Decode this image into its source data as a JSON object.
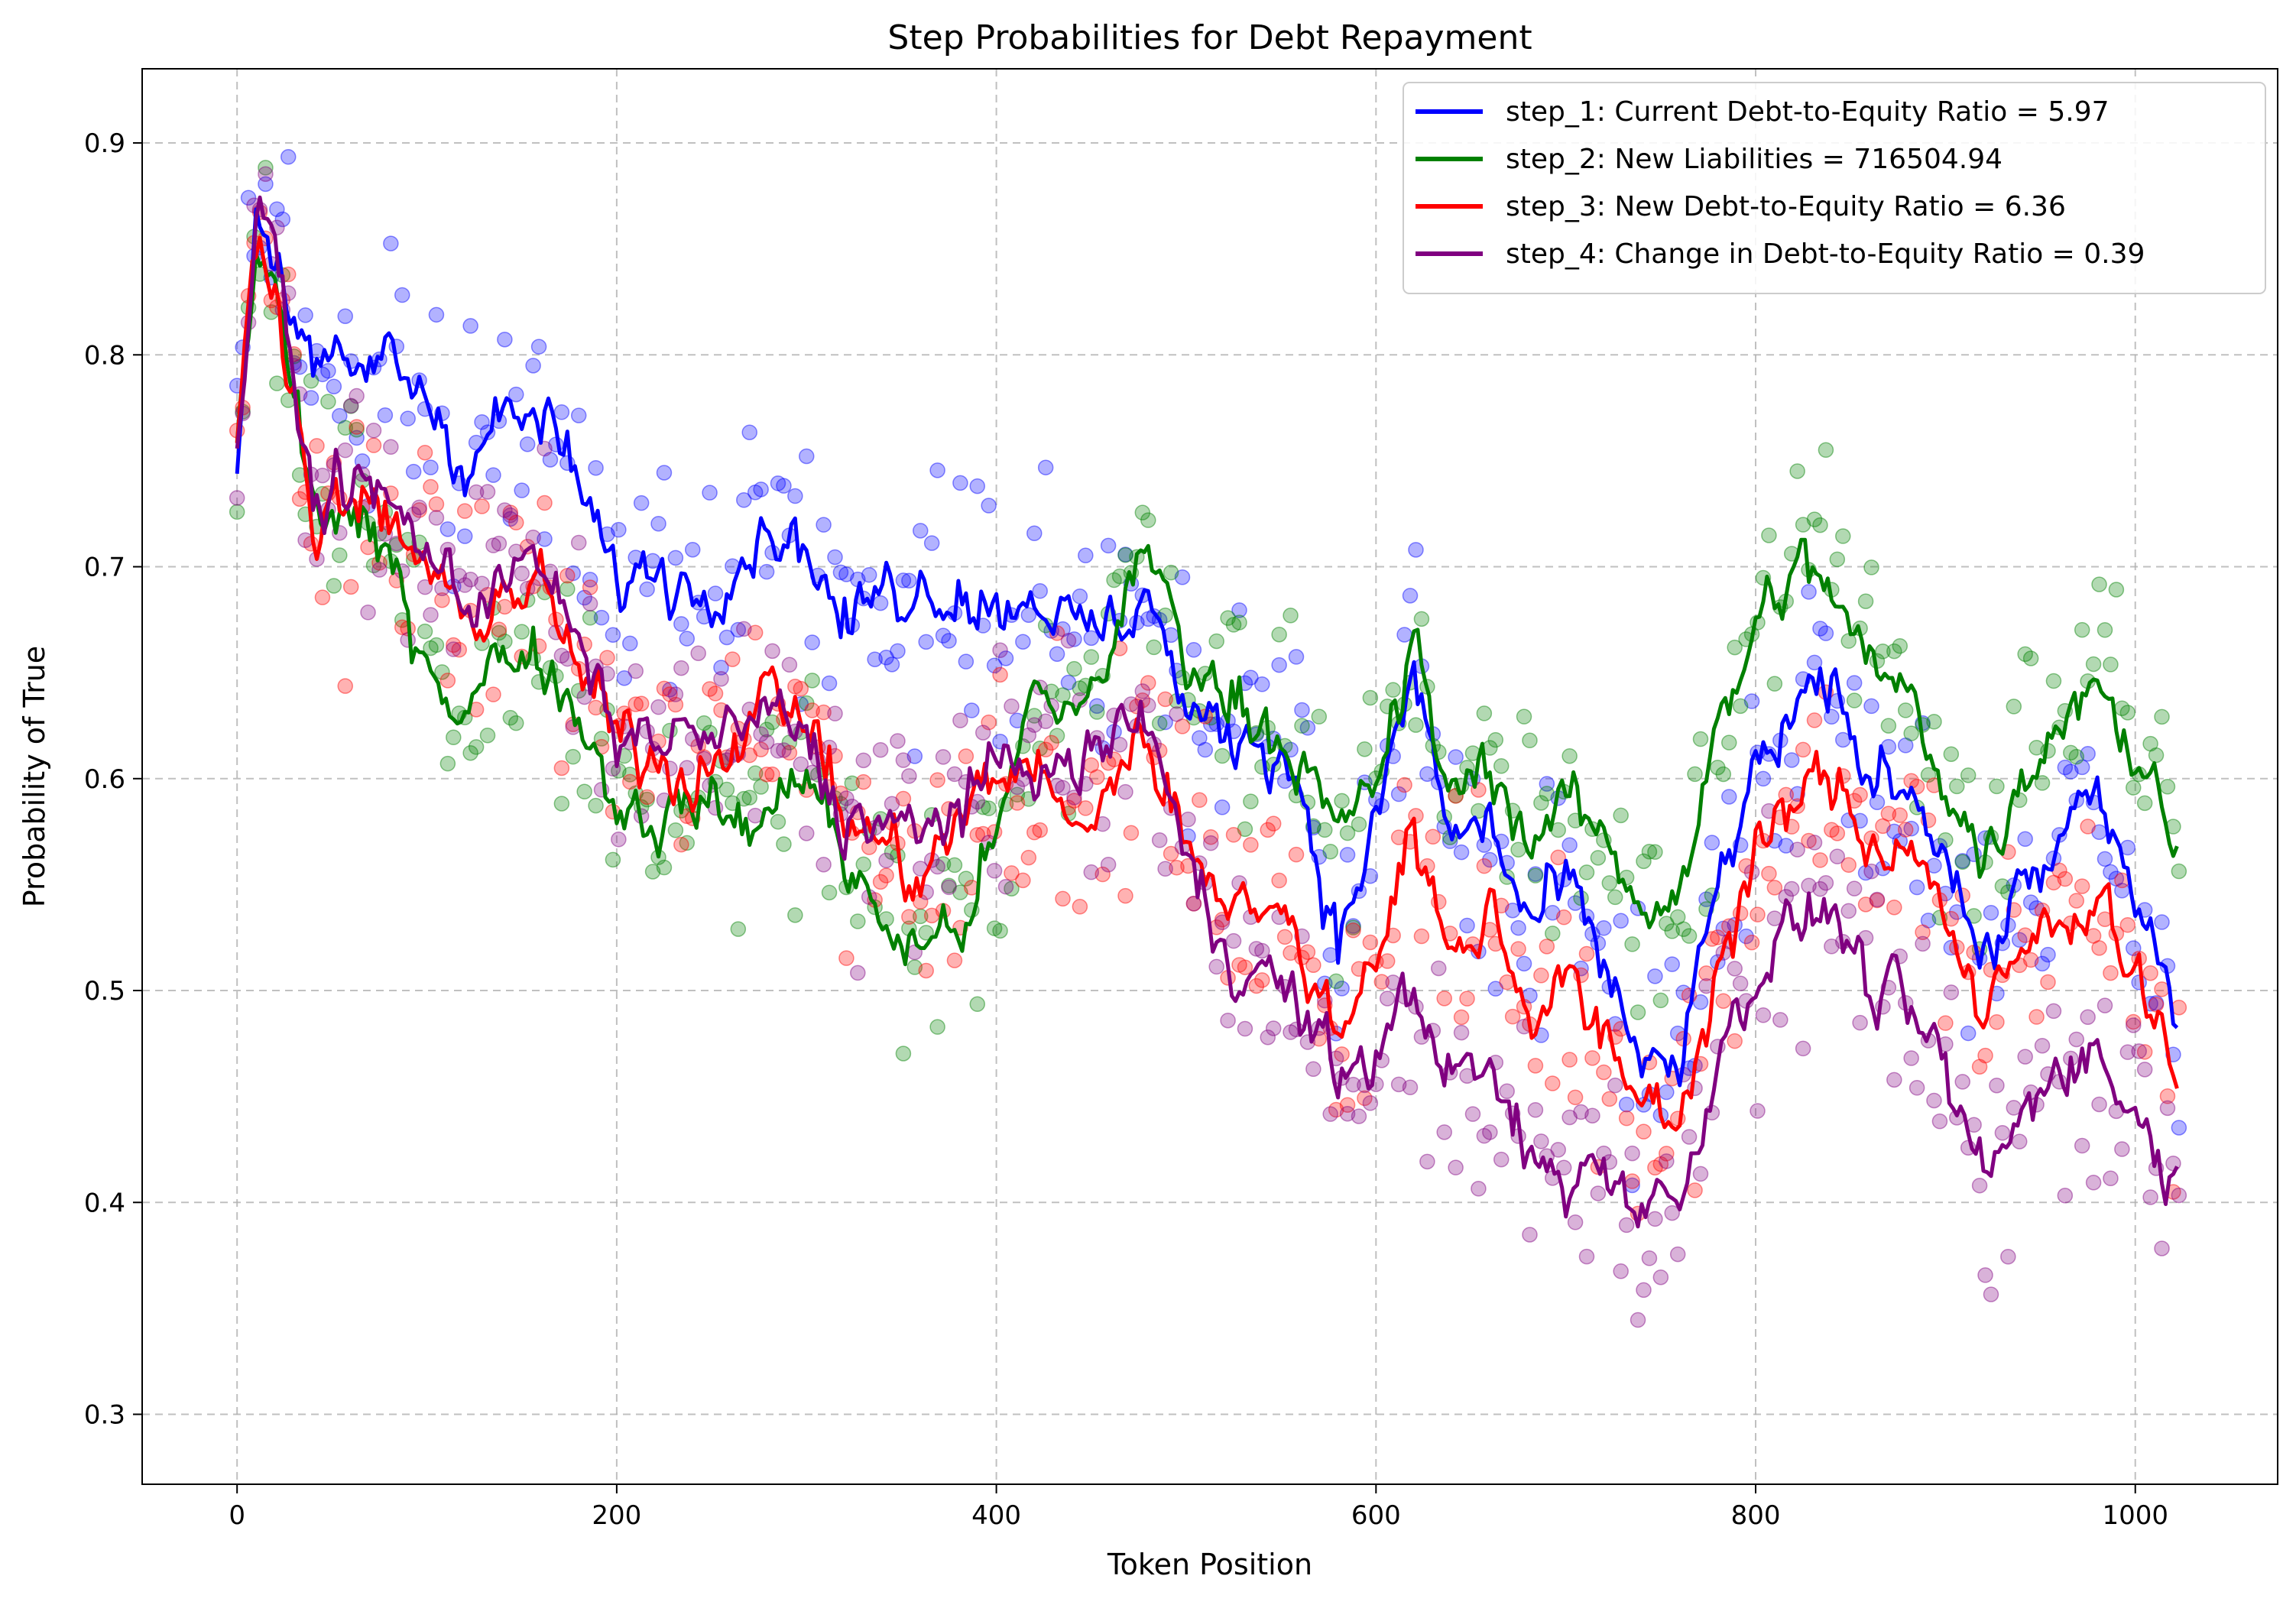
{
  "chart_data": {
    "type": "line",
    "title": "Step Probabilities for Debt Repayment",
    "xlabel": "Token Position",
    "ylabel": "Probability of True",
    "xlim": [
      -50,
      1075
    ],
    "ylim": [
      0.267,
      0.935
    ],
    "x_ticks": [
      0,
      200,
      400,
      600,
      800,
      1000
    ],
    "y_ticks": [
      0.3,
      0.4,
      0.5,
      0.6,
      0.7,
      0.8,
      0.9
    ],
    "grid": true,
    "legend_position": "top-right",
    "x_range": [
      0,
      1023
    ],
    "scatter_point_alpha": 0.3,
    "series": [
      {
        "name": "step_1: Current Debt-to-Equity Ratio = 5.97",
        "color": "#0000ff",
        "points": [
          [
            0,
            0.75
          ],
          [
            10,
            0.87
          ],
          [
            20,
            0.85
          ],
          [
            40,
            0.79
          ],
          [
            60,
            0.79
          ],
          [
            80,
            0.8
          ],
          [
            100,
            0.78
          ],
          [
            120,
            0.75
          ],
          [
            140,
            0.77
          ],
          [
            160,
            0.77
          ],
          [
            180,
            0.74
          ],
          [
            200,
            0.69
          ],
          [
            220,
            0.7
          ],
          [
            240,
            0.69
          ],
          [
            260,
            0.7
          ],
          [
            280,
            0.72
          ],
          [
            300,
            0.71
          ],
          [
            320,
            0.67
          ],
          [
            340,
            0.69
          ],
          [
            360,
            0.69
          ],
          [
            380,
            0.69
          ],
          [
            400,
            0.68
          ],
          [
            420,
            0.69
          ],
          [
            440,
            0.67
          ],
          [
            460,
            0.67
          ],
          [
            480,
            0.69
          ],
          [
            500,
            0.63
          ],
          [
            520,
            0.62
          ],
          [
            540,
            0.62
          ],
          [
            560,
            0.6
          ],
          [
            580,
            0.52
          ],
          [
            600,
            0.58
          ],
          [
            620,
            0.65
          ],
          [
            640,
            0.57
          ],
          [
            660,
            0.58
          ],
          [
            680,
            0.53
          ],
          [
            700,
            0.55
          ],
          [
            720,
            0.51
          ],
          [
            740,
            0.47
          ],
          [
            760,
            0.46
          ],
          [
            780,
            0.55
          ],
          [
            800,
            0.6
          ],
          [
            820,
            0.63
          ],
          [
            840,
            0.64
          ],
          [
            860,
            0.6
          ],
          [
            880,
            0.6
          ],
          [
            900,
            0.57
          ],
          [
            920,
            0.51
          ],
          [
            940,
            0.55
          ],
          [
            960,
            0.57
          ],
          [
            980,
            0.59
          ],
          [
            1000,
            0.54
          ],
          [
            1023,
            0.49
          ]
        ]
      },
      {
        "name": "step_2: New Liabilities = 716504.94",
        "color": "#008000",
        "points": [
          [
            0,
            0.75
          ],
          [
            10,
            0.85
          ],
          [
            20,
            0.83
          ],
          [
            40,
            0.73
          ],
          [
            60,
            0.72
          ],
          [
            80,
            0.7
          ],
          [
            100,
            0.66
          ],
          [
            120,
            0.63
          ],
          [
            140,
            0.66
          ],
          [
            160,
            0.66
          ],
          [
            180,
            0.63
          ],
          [
            200,
            0.59
          ],
          [
            220,
            0.58
          ],
          [
            240,
            0.59
          ],
          [
            260,
            0.58
          ],
          [
            280,
            0.58
          ],
          [
            300,
            0.61
          ],
          [
            320,
            0.56
          ],
          [
            340,
            0.53
          ],
          [
            360,
            0.52
          ],
          [
            380,
            0.53
          ],
          [
            400,
            0.57
          ],
          [
            420,
            0.64
          ],
          [
            440,
            0.63
          ],
          [
            460,
            0.66
          ],
          [
            480,
            0.71
          ],
          [
            500,
            0.66
          ],
          [
            520,
            0.64
          ],
          [
            540,
            0.63
          ],
          [
            560,
            0.61
          ],
          [
            580,
            0.57
          ],
          [
            600,
            0.6
          ],
          [
            620,
            0.66
          ],
          [
            640,
            0.59
          ],
          [
            660,
            0.61
          ],
          [
            680,
            0.57
          ],
          [
            700,
            0.59
          ],
          [
            720,
            0.57
          ],
          [
            740,
            0.54
          ],
          [
            760,
            0.55
          ],
          [
            780,
            0.62
          ],
          [
            800,
            0.67
          ],
          [
            820,
            0.7
          ],
          [
            840,
            0.69
          ],
          [
            860,
            0.65
          ],
          [
            880,
            0.64
          ],
          [
            900,
            0.6
          ],
          [
            920,
            0.56
          ],
          [
            940,
            0.6
          ],
          [
            960,
            0.63
          ],
          [
            980,
            0.65
          ],
          [
            1000,
            0.61
          ],
          [
            1023,
            0.57
          ]
        ]
      },
      {
        "name": "step_3: New Debt-to-Equity Ratio = 6.36",
        "color": "#ff0000",
        "points": [
          [
            0,
            0.75
          ],
          [
            10,
            0.86
          ],
          [
            20,
            0.84
          ],
          [
            40,
            0.72
          ],
          [
            60,
            0.73
          ],
          [
            80,
            0.72
          ],
          [
            100,
            0.7
          ],
          [
            120,
            0.67
          ],
          [
            140,
            0.69
          ],
          [
            160,
            0.69
          ],
          [
            180,
            0.65
          ],
          [
            200,
            0.62
          ],
          [
            220,
            0.61
          ],
          [
            240,
            0.6
          ],
          [
            260,
            0.62
          ],
          [
            280,
            0.64
          ],
          [
            300,
            0.63
          ],
          [
            320,
            0.58
          ],
          [
            340,
            0.57
          ],
          [
            360,
            0.55
          ],
          [
            380,
            0.58
          ],
          [
            400,
            0.6
          ],
          [
            420,
            0.61
          ],
          [
            440,
            0.57
          ],
          [
            460,
            0.6
          ],
          [
            480,
            0.62
          ],
          [
            500,
            0.57
          ],
          [
            520,
            0.55
          ],
          [
            540,
            0.54
          ],
          [
            560,
            0.52
          ],
          [
            580,
            0.48
          ],
          [
            600,
            0.52
          ],
          [
            620,
            0.58
          ],
          [
            640,
            0.51
          ],
          [
            660,
            0.54
          ],
          [
            680,
            0.49
          ],
          [
            700,
            0.51
          ],
          [
            720,
            0.47
          ],
          [
            740,
            0.45
          ],
          [
            760,
            0.44
          ],
          [
            780,
            0.51
          ],
          [
            800,
            0.56
          ],
          [
            820,
            0.59
          ],
          [
            840,
            0.6
          ],
          [
            860,
            0.57
          ],
          [
            880,
            0.57
          ],
          [
            900,
            0.54
          ],
          [
            920,
            0.48
          ],
          [
            940,
            0.52
          ],
          [
            960,
            0.53
          ],
          [
            980,
            0.55
          ],
          [
            1000,
            0.51
          ],
          [
            1023,
            0.46
          ]
        ]
      },
      {
        "name": "step_4: Change in Debt-to-Equity Ratio = 0.39",
        "color": "#800080",
        "points": [
          [
            0,
            0.75
          ],
          [
            10,
            0.86
          ],
          [
            20,
            0.85
          ],
          [
            40,
            0.73
          ],
          [
            60,
            0.74
          ],
          [
            80,
            0.73
          ],
          [
            100,
            0.71
          ],
          [
            120,
            0.68
          ],
          [
            140,
            0.7
          ],
          [
            160,
            0.7
          ],
          [
            180,
            0.66
          ],
          [
            200,
            0.62
          ],
          [
            220,
            0.62
          ],
          [
            240,
            0.62
          ],
          [
            260,
            0.62
          ],
          [
            280,
            0.63
          ],
          [
            300,
            0.62
          ],
          [
            320,
            0.58
          ],
          [
            340,
            0.58
          ],
          [
            360,
            0.57
          ],
          [
            380,
            0.59
          ],
          [
            400,
            0.6
          ],
          [
            420,
            0.61
          ],
          [
            440,
            0.6
          ],
          [
            460,
            0.62
          ],
          [
            480,
            0.63
          ],
          [
            500,
            0.56
          ],
          [
            520,
            0.52
          ],
          [
            540,
            0.51
          ],
          [
            560,
            0.49
          ],
          [
            580,
            0.46
          ],
          [
            600,
            0.47
          ],
          [
            620,
            0.5
          ],
          [
            640,
            0.46
          ],
          [
            660,
            0.46
          ],
          [
            680,
            0.42
          ],
          [
            700,
            0.41
          ],
          [
            720,
            0.42
          ],
          [
            740,
            0.4
          ],
          [
            760,
            0.4
          ],
          [
            780,
            0.47
          ],
          [
            800,
            0.51
          ],
          [
            820,
            0.53
          ],
          [
            840,
            0.54
          ],
          [
            860,
            0.5
          ],
          [
            880,
            0.49
          ],
          [
            900,
            0.46
          ],
          [
            920,
            0.41
          ],
          [
            940,
            0.44
          ],
          [
            960,
            0.47
          ],
          [
            980,
            0.47
          ],
          [
            1000,
            0.44
          ],
          [
            1023,
            0.41
          ]
        ]
      }
    ]
  }
}
